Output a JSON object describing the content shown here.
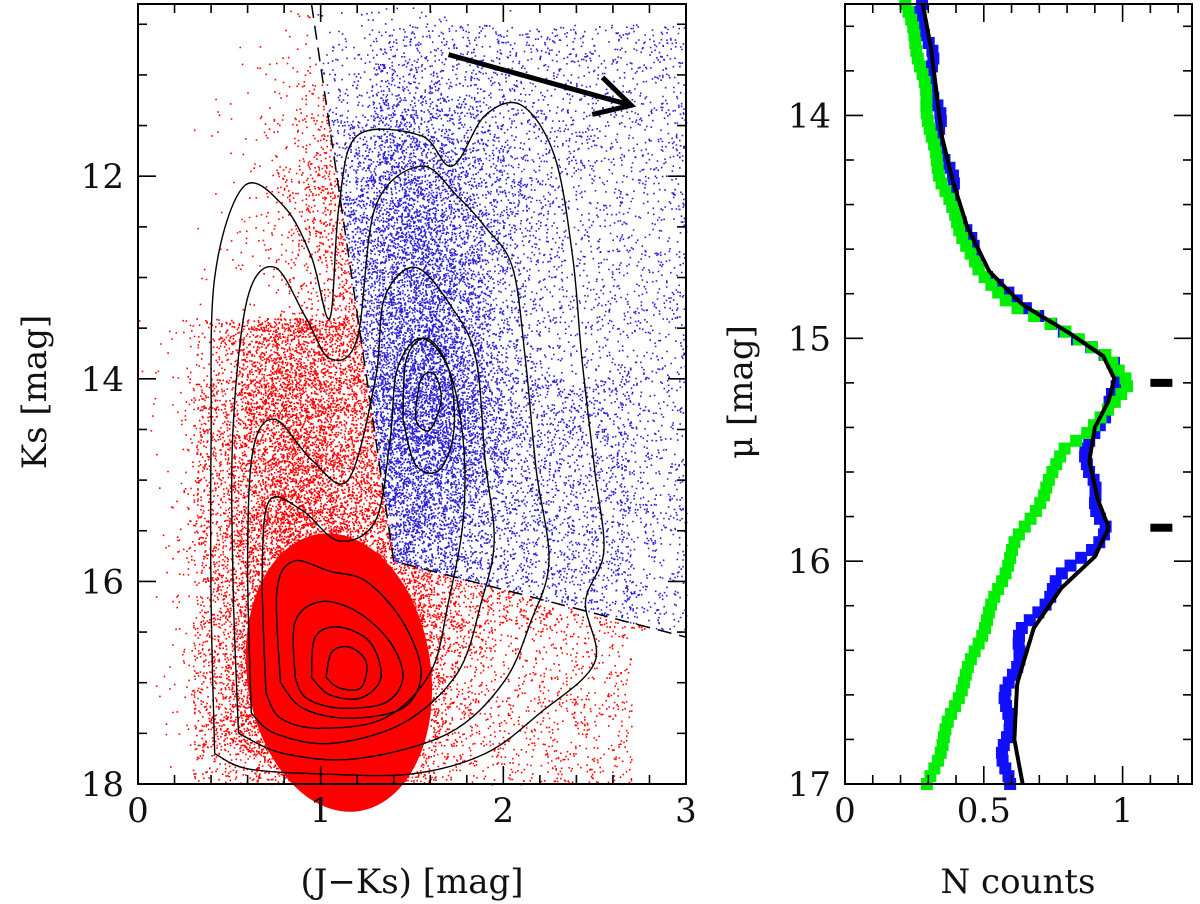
{
  "colors": {
    "red_giants": "#ff0000",
    "blue_stars": "#2a1fd6",
    "green_profile": "#00ee00",
    "blue_profile": "#1010ff",
    "contour": "#000000"
  },
  "chart_data": [
    {
      "type": "scatter",
      "title": "",
      "xlabel": "(J−Ks) [mag]",
      "ylabel": "Ks [mag]",
      "xlim": [
        0,
        3
      ],
      "ylim": [
        18,
        10.3
      ],
      "y_inverted": true,
      "x_ticks": [
        "0",
        "1",
        "2",
        "3"
      ],
      "y_ticks": [
        "12",
        "14",
        "16",
        "18"
      ],
      "series": [
        {
          "color_key": "red_giants",
          "description_region": "below dividing line",
          "peak_density": {
            "x": 1.15,
            "y": 16.9
          }
        },
        {
          "color_key": "blue_stars",
          "description_region": "above dividing line",
          "peak_density": {
            "x": 1.58,
            "y": 14.2
          }
        }
      ],
      "dividing_line": [
        {
          "x": 0.95,
          "y": 10.3
        },
        {
          "x": 1.4,
          "y": 15.8
        },
        {
          "x": 3.0,
          "y": 16.55
        }
      ],
      "reddening_arrow": {
        "from": {
          "x": 1.7,
          "y": 10.8
        },
        "to": {
          "x": 2.7,
          "y": 11.3
        }
      },
      "contours": [
        [
          [
            0.42,
            17.7
          ],
          [
            0.4,
            16.2
          ],
          [
            0.4,
            14.6
          ],
          [
            0.42,
            13.0
          ],
          [
            0.58,
            12.1
          ],
          [
            0.8,
            12.3
          ],
          [
            0.95,
            12.8
          ],
          [
            1.05,
            13.4
          ],
          [
            1.1,
            12.3
          ],
          [
            1.2,
            11.6
          ],
          [
            1.55,
            11.6
          ],
          [
            1.72,
            11.9
          ],
          [
            1.9,
            11.4
          ],
          [
            2.1,
            11.3
          ],
          [
            2.28,
            11.8
          ],
          [
            2.38,
            12.8
          ],
          [
            2.43,
            13.8
          ],
          [
            2.5,
            14.9
          ],
          [
            2.55,
            15.7
          ],
          [
            2.45,
            16.2
          ],
          [
            2.5,
            16.8
          ],
          [
            2.2,
            17.3
          ],
          [
            1.9,
            17.7
          ],
          [
            1.5,
            17.9
          ],
          [
            1.0,
            17.9
          ],
          [
            0.6,
            17.85
          ],
          [
            0.42,
            17.7
          ]
        ],
        [
          [
            0.55,
            17.5
          ],
          [
            0.52,
            16.0
          ],
          [
            0.52,
            14.5
          ],
          [
            0.6,
            13.2
          ],
          [
            0.75,
            12.9
          ],
          [
            0.92,
            13.4
          ],
          [
            1.05,
            13.8
          ],
          [
            1.2,
            13.6
          ],
          [
            1.3,
            12.3
          ],
          [
            1.55,
            11.9
          ],
          [
            1.75,
            12.2
          ],
          [
            1.9,
            12.5
          ],
          [
            2.05,
            12.9
          ],
          [
            2.12,
            13.8
          ],
          [
            2.18,
            14.9
          ],
          [
            2.25,
            15.8
          ],
          [
            2.15,
            16.4
          ],
          [
            2.0,
            17.0
          ],
          [
            1.7,
            17.5
          ],
          [
            1.2,
            17.75
          ],
          [
            0.8,
            17.7
          ],
          [
            0.55,
            17.5
          ]
        ],
        [
          [
            0.62,
            17.3
          ],
          [
            0.6,
            15.8
          ],
          [
            0.63,
            14.7
          ],
          [
            0.75,
            14.4
          ],
          [
            0.95,
            14.8
          ],
          [
            1.15,
            15.0
          ],
          [
            1.3,
            14.0
          ],
          [
            1.35,
            13.2
          ],
          [
            1.52,
            12.9
          ],
          [
            1.72,
            13.3
          ],
          [
            1.85,
            13.8
          ],
          [
            1.9,
            14.8
          ],
          [
            1.95,
            15.6
          ],
          [
            1.88,
            16.2
          ],
          [
            1.75,
            16.9
          ],
          [
            1.45,
            17.4
          ],
          [
            1.05,
            17.6
          ],
          [
            0.75,
            17.5
          ],
          [
            0.62,
            17.3
          ]
        ],
        [
          [
            0.7,
            17.1
          ],
          [
            0.68,
            15.9
          ],
          [
            0.72,
            15.2
          ],
          [
            0.9,
            15.3
          ],
          [
            1.1,
            15.6
          ],
          [
            1.3,
            15.4
          ],
          [
            1.38,
            14.6
          ],
          [
            1.42,
            13.9
          ],
          [
            1.55,
            13.6
          ],
          [
            1.7,
            13.9
          ],
          [
            1.78,
            14.6
          ],
          [
            1.78,
            15.4
          ],
          [
            1.7,
            16.2
          ],
          [
            1.6,
            16.9
          ],
          [
            1.35,
            17.35
          ],
          [
            1.0,
            17.45
          ],
          [
            0.78,
            17.35
          ],
          [
            0.7,
            17.1
          ]
        ],
        [
          [
            0.78,
            17.0
          ],
          [
            0.76,
            16.1
          ],
          [
            0.85,
            15.8
          ],
          [
            1.05,
            15.9
          ],
          [
            1.25,
            16.0
          ],
          [
            1.45,
            16.4
          ],
          [
            1.55,
            16.9
          ],
          [
            1.45,
            17.25
          ],
          [
            1.15,
            17.35
          ],
          [
            0.9,
            17.25
          ],
          [
            0.78,
            17.0
          ]
        ],
        [
          [
            0.86,
            16.95
          ],
          [
            0.86,
            16.4
          ],
          [
            1.0,
            16.2
          ],
          [
            1.2,
            16.3
          ],
          [
            1.38,
            16.6
          ],
          [
            1.45,
            16.95
          ],
          [
            1.35,
            17.2
          ],
          [
            1.1,
            17.25
          ],
          [
            0.92,
            17.15
          ],
          [
            0.86,
            16.95
          ]
        ],
        [
          [
            0.95,
            16.95
          ],
          [
            0.97,
            16.55
          ],
          [
            1.1,
            16.45
          ],
          [
            1.27,
            16.6
          ],
          [
            1.33,
            16.95
          ],
          [
            1.22,
            17.15
          ],
          [
            1.05,
            17.12
          ],
          [
            0.95,
            16.95
          ]
        ],
        [
          [
            1.03,
            16.95
          ],
          [
            1.06,
            16.7
          ],
          [
            1.16,
            16.65
          ],
          [
            1.25,
            16.8
          ],
          [
            1.22,
            17.05
          ],
          [
            1.1,
            17.05
          ],
          [
            1.03,
            16.95
          ]
        ],
        [
          [
            1.45,
            14.4
          ],
          [
            1.47,
            13.8
          ],
          [
            1.58,
            13.6
          ],
          [
            1.7,
            13.9
          ],
          [
            1.73,
            14.5
          ],
          [
            1.65,
            14.9
          ],
          [
            1.52,
            14.85
          ],
          [
            1.45,
            14.4
          ]
        ],
        [
          [
            1.52,
            14.3
          ],
          [
            1.55,
            14.0
          ],
          [
            1.62,
            13.95
          ],
          [
            1.66,
            14.2
          ],
          [
            1.6,
            14.5
          ],
          [
            1.53,
            14.45
          ],
          [
            1.52,
            14.3
          ]
        ]
      ]
    },
    {
      "type": "line",
      "title": "",
      "xlabel": "N counts",
      "ylabel": "μ [mag]",
      "xlim": [
        0,
        1.25
      ],
      "ylim": [
        17,
        13.5
      ],
      "y_inverted": true,
      "x_ticks": [
        "0",
        "0.5",
        "1"
      ],
      "y_ticks": [
        "14",
        "15",
        "16",
        "17"
      ],
      "peak_markers": [
        15.2,
        15.85
      ],
      "series": [
        {
          "color_key": "blue_profile",
          "style": "squares",
          "points": [
            [
              0.27,
              13.5
            ],
            [
              0.3,
              13.7
            ],
            [
              0.32,
              13.9
            ],
            [
              0.34,
              14.1
            ],
            [
              0.38,
              14.3
            ],
            [
              0.42,
              14.5
            ],
            [
              0.5,
              14.7
            ],
            [
              0.62,
              14.85
            ],
            [
              0.78,
              14.95
            ],
            [
              0.95,
              15.1
            ],
            [
              1.0,
              15.2
            ],
            [
              0.95,
              15.3
            ],
            [
              0.9,
              15.4
            ],
            [
              0.88,
              15.5
            ],
            [
              0.87,
              15.6
            ],
            [
              0.9,
              15.7
            ],
            [
              0.94,
              15.85
            ],
            [
              0.88,
              15.95
            ],
            [
              0.76,
              16.1
            ],
            [
              0.65,
              16.3
            ],
            [
              0.6,
              16.5
            ],
            [
              0.58,
              16.7
            ],
            [
              0.58,
              16.9
            ],
            [
              0.58,
              17.0
            ]
          ]
        },
        {
          "color_key": "green_profile",
          "style": "squares",
          "points": [
            [
              0.22,
              13.5
            ],
            [
              0.26,
              13.7
            ],
            [
              0.29,
              13.9
            ],
            [
              0.31,
              14.1
            ],
            [
              0.35,
              14.3
            ],
            [
              0.41,
              14.5
            ],
            [
              0.48,
              14.7
            ],
            [
              0.6,
              14.85
            ],
            [
              0.76,
              14.95
            ],
            [
              0.95,
              15.08
            ],
            [
              1.02,
              15.2
            ],
            [
              0.95,
              15.32
            ],
            [
              0.88,
              15.42
            ],
            [
              0.78,
              15.5
            ],
            [
              0.72,
              15.7
            ],
            [
              0.62,
              15.9
            ],
            [
              0.56,
              16.1
            ],
            [
              0.5,
              16.3
            ],
            [
              0.44,
              16.5
            ],
            [
              0.38,
              16.7
            ],
            [
              0.33,
              16.9
            ],
            [
              0.3,
              17.0
            ]
          ]
        },
        {
          "color_key": "contour",
          "style": "fit",
          "points": [
            [
              0.28,
              13.5
            ],
            [
              0.31,
              13.7
            ],
            [
              0.33,
              13.9
            ],
            [
              0.35,
              14.1
            ],
            [
              0.39,
              14.3
            ],
            [
              0.44,
              14.5
            ],
            [
              0.52,
              14.7
            ],
            [
              0.64,
              14.85
            ],
            [
              0.8,
              14.97
            ],
            [
              0.93,
              15.08
            ],
            [
              0.97,
              15.18
            ],
            [
              0.95,
              15.28
            ],
            [
              0.9,
              15.4
            ],
            [
              0.88,
              15.55
            ],
            [
              0.91,
              15.72
            ],
            [
              0.95,
              15.85
            ],
            [
              0.9,
              15.98
            ],
            [
              0.78,
              16.12
            ],
            [
              0.68,
              16.3
            ],
            [
              0.62,
              16.55
            ],
            [
              0.61,
              16.8
            ],
            [
              0.64,
              17.0
            ]
          ]
        }
      ]
    }
  ]
}
